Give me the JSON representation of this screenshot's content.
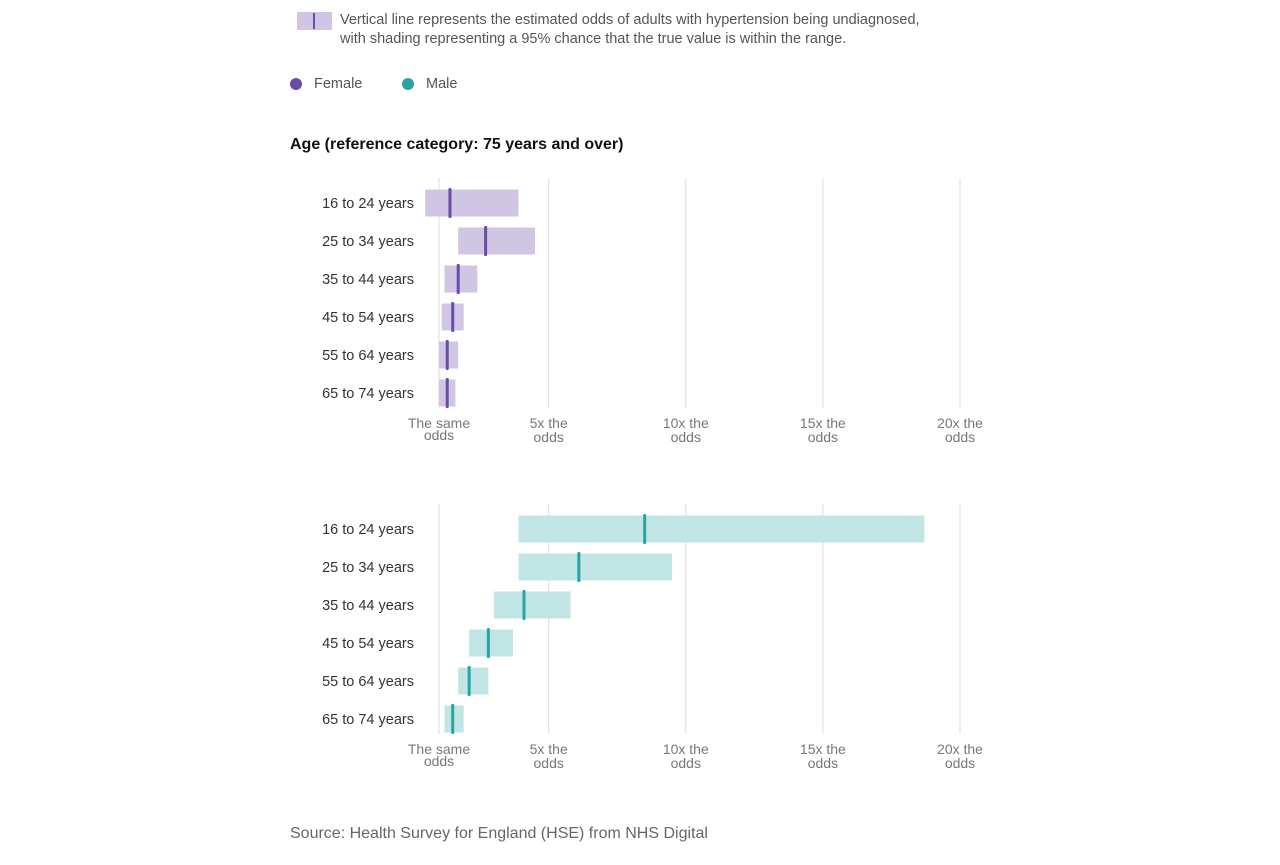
{
  "legend": {
    "description": "Vertical line represents the estimated odds of adults with hypertension being undiagnosed, with shading representing a 95% chance that the true value is within the range.",
    "female_label": "Female",
    "male_label": "Male"
  },
  "section_title": "Age (reference category: 75 years and over)",
  "source": "Source: Health Survey for England (HSE) from NHS Digital",
  "colors": {
    "female_line": "#6a4ca8",
    "female_band": "#d0c6e3",
    "male_line": "#2aa3a3",
    "male_band": "#c1e4e4",
    "grid": "#dddddd"
  },
  "chart_data": [
    {
      "type": "forest",
      "series": "Female",
      "categories": [
        "16 to 24 years",
        "25 to 34 years",
        "35 to 44 years",
        "45 to 54 years",
        "55 to 64 years",
        "65 to 74 years"
      ],
      "estimates": [
        1.4,
        2.7,
        1.7,
        1.5,
        1.3,
        1.3
      ],
      "lower": [
        0.5,
        1.7,
        1.2,
        1.1,
        1.0,
        1.0
      ],
      "upper": [
        3.9,
        4.5,
        2.4,
        1.9,
        1.7,
        1.6
      ],
      "xlim": [
        1,
        20
      ],
      "xticks": [
        1,
        5,
        10,
        15,
        20
      ],
      "xtick_labels": [
        [
          "The same",
          "odds"
        ],
        [
          "5x the",
          "odds"
        ],
        [
          "10x the",
          "odds"
        ],
        [
          "15x the",
          "odds"
        ],
        [
          "20x the",
          "odds"
        ]
      ]
    },
    {
      "type": "forest",
      "series": "Male",
      "categories": [
        "16 to 24 years",
        "25 to 34 years",
        "35 to 44 years",
        "45 to 54 years",
        "55 to 64 years",
        "65 to 74 years"
      ],
      "estimates": [
        8.5,
        6.1,
        4.1,
        2.8,
        2.1,
        1.5
      ],
      "lower": [
        3.9,
        3.9,
        3.0,
        2.1,
        1.7,
        1.2
      ],
      "upper": [
        18.7,
        9.5,
        5.8,
        3.7,
        2.8,
        1.9
      ],
      "xlim": [
        1,
        20
      ],
      "xticks": [
        1,
        5,
        10,
        15,
        20
      ],
      "xtick_labels": [
        [
          "The same",
          "odds"
        ],
        [
          "5x the",
          "odds"
        ],
        [
          "10x the",
          "odds"
        ],
        [
          "15x the",
          "odds"
        ],
        [
          "20x the",
          "odds"
        ]
      ]
    }
  ]
}
